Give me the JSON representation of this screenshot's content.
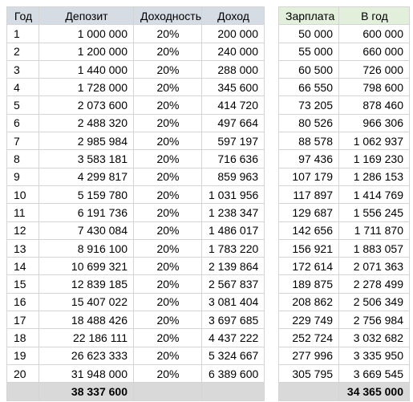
{
  "deposit_table": {
    "headers": [
      "Год",
      "Депозит",
      "Доходность",
      "Доход"
    ],
    "rows": [
      [
        "1",
        "1 000 000",
        "20%",
        "200 000"
      ],
      [
        "2",
        "1 200 000",
        "20%",
        "240 000"
      ],
      [
        "3",
        "1 440 000",
        "20%",
        "288 000"
      ],
      [
        "4",
        "1 728 000",
        "20%",
        "345 600"
      ],
      [
        "5",
        "2 073 600",
        "20%",
        "414 720"
      ],
      [
        "6",
        "2 488 320",
        "20%",
        "497 664"
      ],
      [
        "7",
        "2 985 984",
        "20%",
        "597 197"
      ],
      [
        "8",
        "3 583 181",
        "20%",
        "716 636"
      ],
      [
        "9",
        "4 299 817",
        "20%",
        "859 963"
      ],
      [
        "10",
        "5 159 780",
        "20%",
        "1 031 956"
      ],
      [
        "11",
        "6 191 736",
        "20%",
        "1 238 347"
      ],
      [
        "12",
        "7 430 084",
        "20%",
        "1 486 017"
      ],
      [
        "13",
        "8 916 100",
        "20%",
        "1 783 220"
      ],
      [
        "14",
        "10 699 321",
        "20%",
        "2 139 864"
      ],
      [
        "15",
        "12 839 185",
        "20%",
        "2 567 837"
      ],
      [
        "16",
        "15 407 022",
        "20%",
        "3 081 404"
      ],
      [
        "17",
        "18 488 426",
        "20%",
        "3 697 685"
      ],
      [
        "18",
        "22 186 111",
        "20%",
        "4 437 222"
      ],
      [
        "19",
        "26 623 333",
        "20%",
        "5 324 667"
      ],
      [
        "20",
        "31 948 000",
        "20%",
        "6 389 600"
      ]
    ],
    "total": [
      "",
      "38 337 600",
      "",
      ""
    ]
  },
  "salary_table": {
    "headers": [
      "Зарплата",
      "В год"
    ],
    "rows": [
      [
        "50 000",
        "600 000"
      ],
      [
        "55 000",
        "660 000"
      ],
      [
        "60 500",
        "726 000"
      ],
      [
        "66 550",
        "798 600"
      ],
      [
        "73 205",
        "878 460"
      ],
      [
        "80 526",
        "966 306"
      ],
      [
        "88 578",
        "1 062 937"
      ],
      [
        "97 436",
        "1 169 230"
      ],
      [
        "107 179",
        "1 286 153"
      ],
      [
        "117 897",
        "1 414 769"
      ],
      [
        "129 687",
        "1 556 245"
      ],
      [
        "142 656",
        "1 711 870"
      ],
      [
        "156 921",
        "1 883 057"
      ],
      [
        "172 614",
        "2 071 363"
      ],
      [
        "189 875",
        "2 278 499"
      ],
      [
        "208 862",
        "2 506 349"
      ],
      [
        "229 749",
        "2 756 984"
      ],
      [
        "252 724",
        "3 032 682"
      ],
      [
        "277 996",
        "3 335 950"
      ],
      [
        "305 795",
        "3 669 545"
      ]
    ],
    "total": [
      "",
      "34 365 000"
    ]
  },
  "colors": {
    "deposit_header_bg": "#d6dce4",
    "salary_header_bg": "#e2efda",
    "total_row_bg": "#d9d9d9",
    "gridline": "#d4d4d4"
  }
}
